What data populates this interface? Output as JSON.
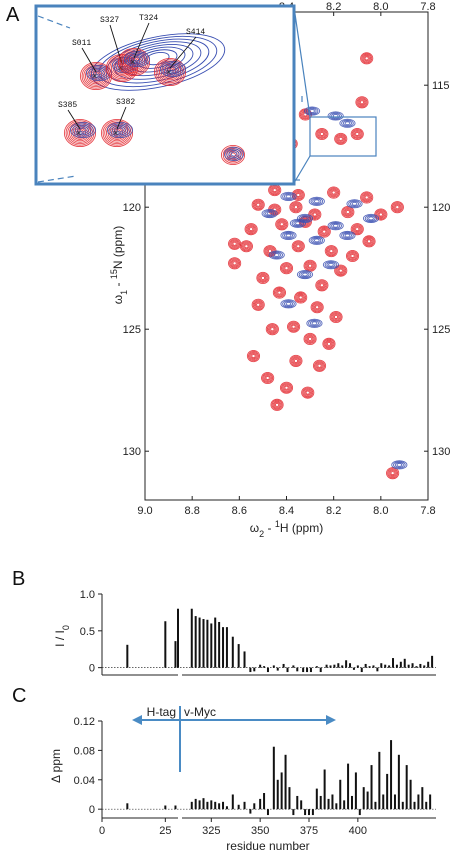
{
  "panels": {
    "a": "A",
    "b": "B",
    "c": "C"
  },
  "colors": {
    "red": "#e3262d",
    "blue": "#3a4fb2",
    "inset_border": "#4a83bd",
    "arrow": "#4a8bc4",
    "bar": "#111111"
  },
  "chart_data": [
    {
      "type": "scatter",
      "subtype": "2D NMR spectrum overlay",
      "xlabel_main": "ω",
      "xlabel_sub": "2",
      "xlabel_rest": " - ",
      "xlabel_sup": "1",
      "xlabel_end": "H  (ppm)",
      "ylabel_main": "ω",
      "ylabel_sub": "1",
      "ylabel_rest": " - ",
      "ylabel_sup": "15",
      "ylabel_end": "N  (ppm)",
      "x_reversed": true,
      "xlim": [
        9.0,
        7.8
      ],
      "ylim": [
        112,
        132
      ],
      "xticks_bottom": [
        "9.0",
        "8.8",
        "8.6",
        "8.4",
        "8.2",
        "8.0",
        "7.8"
      ],
      "xticks_top": [
        "8.4",
        "8.2",
        "8.0",
        "7.8"
      ],
      "yticks": [
        "115",
        "120",
        "125",
        "130"
      ],
      "series": [
        {
          "color": "red",
          "points": [
            [
              8.06,
              113.9
            ],
            [
              8.08,
              115.7
            ],
            [
              8.32,
              116.2
            ],
            [
              8.25,
              117.0
            ],
            [
              8.17,
              117.2
            ],
            [
              8.1,
              117.0
            ],
            [
              8.38,
              117.4
            ],
            [
              8.45,
              119.3
            ],
            [
              8.35,
              119.5
            ],
            [
              8.2,
              119.4
            ],
            [
              8.06,
              119.6
            ],
            [
              8.52,
              119.9
            ],
            [
              8.45,
              120.1
            ],
            [
              8.36,
              120.0
            ],
            [
              8.28,
              120.3
            ],
            [
              8.14,
              120.2
            ],
            [
              8.0,
              120.3
            ],
            [
              7.93,
              120.0
            ],
            [
              8.55,
              120.9
            ],
            [
              8.42,
              120.7
            ],
            [
              8.32,
              120.6
            ],
            [
              8.24,
              121.0
            ],
            [
              8.1,
              120.9
            ],
            [
              8.05,
              121.4
            ],
            [
              8.57,
              121.6
            ],
            [
              8.47,
              121.8
            ],
            [
              8.35,
              121.6
            ],
            [
              8.21,
              121.8
            ],
            [
              8.62,
              122.3
            ],
            [
              8.4,
              122.5
            ],
            [
              8.3,
              122.4
            ],
            [
              8.17,
              122.6
            ],
            [
              8.5,
              122.9
            ],
            [
              8.25,
              123.2
            ],
            [
              8.43,
              123.5
            ],
            [
              8.34,
              123.7
            ],
            [
              8.52,
              124.0
            ],
            [
              8.27,
              124.1
            ],
            [
              8.19,
              124.5
            ],
            [
              8.37,
              124.9
            ],
            [
              8.46,
              125.0
            ],
            [
              8.3,
              125.4
            ],
            [
              8.22,
              125.6
            ],
            [
              8.54,
              126.1
            ],
            [
              8.36,
              126.3
            ],
            [
              8.26,
              126.5
            ],
            [
              8.48,
              127.0
            ],
            [
              8.4,
              127.4
            ],
            [
              8.31,
              127.6
            ],
            [
              8.44,
              128.1
            ],
            [
              7.95,
              130.9
            ],
            [
              8.62,
              121.5
            ],
            [
              8.12,
              122.0
            ]
          ]
        },
        {
          "color": "blue",
          "points": [
            [
              8.2,
              116.3
            ],
            [
              8.15,
              116.6
            ],
            [
              8.3,
              116.1
            ],
            [
              8.4,
              119.6
            ],
            [
              8.28,
              119.8
            ],
            [
              8.12,
              119.9
            ],
            [
              8.48,
              120.3
            ],
            [
              8.33,
              120.5
            ],
            [
              8.2,
              120.8
            ],
            [
              8.05,
              120.5
            ],
            [
              8.4,
              121.2
            ],
            [
              8.28,
              121.4
            ],
            [
              8.15,
              121.2
            ],
            [
              8.45,
              122.0
            ],
            [
              8.33,
              122.8
            ],
            [
              8.22,
              122.4
            ],
            [
              8.4,
              124.0
            ],
            [
              8.29,
              124.8
            ],
            [
              7.93,
              130.6
            ],
            [
              8.36,
              120.7
            ]
          ]
        }
      ]
    },
    {
      "type": "scatter",
      "subtype": "zoomed inset",
      "labels": [
        "S011",
        "S327",
        "T324",
        "S414",
        "S385",
        "S382"
      ]
    },
    {
      "type": "bar",
      "ylabel": "I / I",
      "ylabel_sub": "0",
      "ylim": [
        -0.1,
        1.0
      ],
      "yticks": [
        "1.0",
        "0.5",
        "0"
      ],
      "xlim": [
        0,
        440
      ],
      "values_xy": [
        [
          10,
          0.31
        ],
        [
          25,
          0.63
        ],
        [
          29,
          0.36
        ],
        [
          30,
          0.8
        ],
        [
          315,
          0.8
        ],
        [
          317,
          0.7
        ],
        [
          319,
          0.68
        ],
        [
          321,
          0.66
        ],
        [
          323,
          0.65
        ],
        [
          325,
          0.6
        ],
        [
          327,
          0.68
        ],
        [
          329,
          0.62
        ],
        [
          331,
          0.55
        ],
        [
          333,
          0.55
        ],
        [
          336,
          0.42
        ],
        [
          339,
          0.32
        ],
        [
          342,
          0.22
        ],
        [
          345,
          -0.06
        ],
        [
          347,
          -0.05
        ],
        [
          350,
          0.04
        ],
        [
          352,
          0.02
        ],
        [
          354,
          -0.06
        ],
        [
          357,
          0.03
        ],
        [
          359,
          -0.04
        ],
        [
          362,
          0.05
        ],
        [
          364,
          -0.06
        ],
        [
          367,
          0.03
        ],
        [
          369,
          -0.05
        ],
        [
          372,
          -0.06
        ],
        [
          374,
          -0.06
        ],
        [
          376,
          -0.06
        ],
        [
          379,
          0.02
        ],
        [
          381,
          -0.06
        ],
        [
          384,
          0.04
        ],
        [
          386,
          0.03
        ],
        [
          388,
          0.04
        ],
        [
          390,
          0.06
        ],
        [
          392,
          0.03
        ],
        [
          394,
          0.1
        ],
        [
          396,
          0.06
        ],
        [
          398,
          -0.03
        ],
        [
          400,
          0.03
        ],
        [
          402,
          -0.06
        ],
        [
          404,
          0.05
        ],
        [
          406,
          0.02
        ],
        [
          408,
          0.03
        ],
        [
          410,
          -0.05
        ],
        [
          412,
          0.06
        ],
        [
          414,
          0.04
        ],
        [
          416,
          0.03
        ],
        [
          418,
          0.13
        ],
        [
          420,
          0.04
        ],
        [
          422,
          0.08
        ],
        [
          424,
          0.12
        ],
        [
          426,
          0.04
        ],
        [
          428,
          0.06
        ],
        [
          430,
          0.02
        ],
        [
          432,
          0.05
        ],
        [
          434,
          0.03
        ],
        [
          436,
          0.08
        ],
        [
          438,
          0.16
        ]
      ]
    },
    {
      "type": "bar",
      "ylabel": "Δ ppm",
      "ylim": [
        -0.012,
        0.12
      ],
      "yticks": [
        "0.12",
        "0.08",
        "0.04",
        "0"
      ],
      "xticks": [
        "0",
        "25",
        "325",
        "350",
        "375",
        "400"
      ],
      "xlabel": "residue number",
      "arrow_labels": {
        "left": "H-tag",
        "right": "v-Myc"
      },
      "values_xy": [
        [
          10,
          0.008
        ],
        [
          25,
          0.005
        ],
        [
          29,
          0.005
        ],
        [
          315,
          0.01
        ],
        [
          317,
          0.014
        ],
        [
          319,
          0.012
        ],
        [
          321,
          0.015
        ],
        [
          323,
          0.01
        ],
        [
          325,
          0.012
        ],
        [
          327,
          0.01
        ],
        [
          329,
          0.008
        ],
        [
          331,
          0.01
        ],
        [
          333,
          0.004
        ],
        [
          336,
          0.02
        ],
        [
          339,
          0.006
        ],
        [
          342,
          0.01
        ],
        [
          345,
          -0.006
        ],
        [
          347,
          0.008
        ],
        [
          350,
          0.014
        ],
        [
          352,
          0.022
        ],
        [
          354,
          -0.008
        ],
        [
          357,
          0.085
        ],
        [
          359,
          0.04
        ],
        [
          361,
          0.05
        ],
        [
          363,
          0.074
        ],
        [
          365,
          0.03
        ],
        [
          367,
          -0.008
        ],
        [
          369,
          0.018
        ],
        [
          371,
          0.012
        ],
        [
          373,
          -0.008
        ],
        [
          375,
          -0.008
        ],
        [
          377,
          -0.008
        ],
        [
          379,
          0.028
        ],
        [
          381,
          0.018
        ],
        [
          383,
          0.054
        ],
        [
          385,
          0.014
        ],
        [
          387,
          0.02
        ],
        [
          389,
          0.008
        ],
        [
          391,
          0.04
        ],
        [
          393,
          0.012
        ],
        [
          395,
          0.062
        ],
        [
          397,
          0.018
        ],
        [
          399,
          0.05
        ],
        [
          401,
          -0.008
        ],
        [
          403,
          0.03
        ],
        [
          405,
          0.024
        ],
        [
          407,
          0.06
        ],
        [
          409,
          0.01
        ],
        [
          411,
          0.078
        ],
        [
          413,
          0.02
        ],
        [
          415,
          0.048
        ],
        [
          417,
          0.094
        ],
        [
          419,
          0.02
        ],
        [
          421,
          0.074
        ],
        [
          423,
          0.01
        ],
        [
          425,
          0.06
        ],
        [
          427,
          0.04
        ],
        [
          429,
          0.01
        ],
        [
          431,
          0.02
        ],
        [
          433,
          0.03
        ],
        [
          435,
          0.01
        ],
        [
          437,
          0.02
        ]
      ]
    }
  ]
}
